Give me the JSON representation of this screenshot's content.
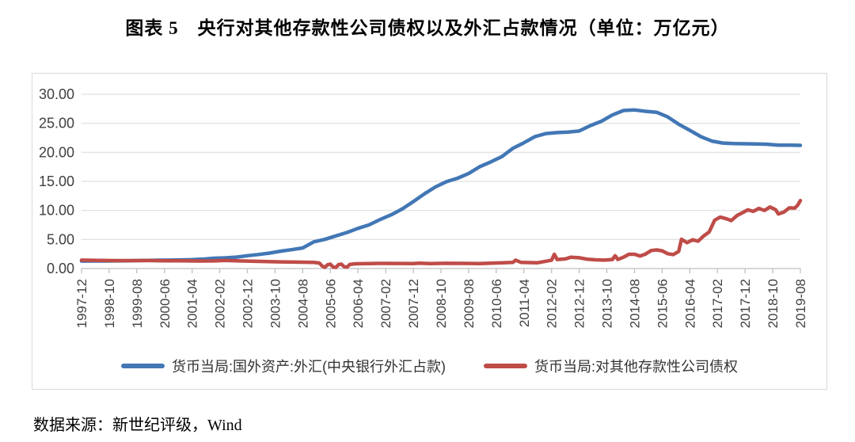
{
  "title": "图表 5　央行对其他存款性公司债权以及外汇占款情况（单位：万亿元）",
  "source": "数据来源：新世纪评级，Wind",
  "chart_data": {
    "type": "line",
    "unit": "万亿元",
    "grid": true,
    "legend_position": "bottom",
    "y_axis": {
      "min": 0,
      "max": 30,
      "ticks": [
        "0.00",
        "5.00",
        "10.00",
        "15.00",
        "20.00",
        "25.00",
        "30.00"
      ]
    },
    "x_axis": {
      "start": "1997-12",
      "end": "2019-08",
      "tick_labels": [
        "1997-12",
        "1998-10",
        "1999-08",
        "2000-06",
        "2001-04",
        "2002-02",
        "2002-12",
        "2003-10",
        "2004-08",
        "2005-06",
        "2006-04",
        "2007-02",
        "2007-12",
        "2008-10",
        "2009-08",
        "2010-06",
        "2011-04",
        "2012-02",
        "2012-12",
        "2013-10",
        "2014-08",
        "2015-06",
        "2016-04",
        "2017-02",
        "2017-12",
        "2018-10",
        "2019-08"
      ]
    },
    "series": [
      {
        "name": "货币当局:国外资产:外汇(中央银行外汇占款)",
        "color": "#4277b5",
        "points": [
          [
            "1997-12",
            1.28
          ],
          [
            "1998-04",
            1.29
          ],
          [
            "1998-08",
            1.3
          ],
          [
            "1998-12",
            1.31
          ],
          [
            "1999-04",
            1.34
          ],
          [
            "1999-08",
            1.37
          ],
          [
            "1999-12",
            1.41
          ],
          [
            "2000-04",
            1.43
          ],
          [
            "2000-08",
            1.45
          ],
          [
            "2000-12",
            1.48
          ],
          [
            "2001-04",
            1.53
          ],
          [
            "2001-08",
            1.62
          ],
          [
            "2001-12",
            1.77
          ],
          [
            "2002-04",
            1.84
          ],
          [
            "2002-08",
            1.96
          ],
          [
            "2002-12",
            2.21
          ],
          [
            "2003-04",
            2.42
          ],
          [
            "2003-08",
            2.66
          ],
          [
            "2003-12",
            2.98
          ],
          [
            "2004-04",
            3.25
          ],
          [
            "2004-08",
            3.55
          ],
          [
            "2004-12",
            4.59
          ],
          [
            "2005-04",
            5.02
          ],
          [
            "2005-08",
            5.62
          ],
          [
            "2005-12",
            6.21
          ],
          [
            "2006-04",
            6.92
          ],
          [
            "2006-08",
            7.52
          ],
          [
            "2006-12",
            8.44
          ],
          [
            "2007-04",
            9.25
          ],
          [
            "2007-08",
            10.25
          ],
          [
            "2007-12",
            11.52
          ],
          [
            "2008-04",
            12.85
          ],
          [
            "2008-08",
            14.05
          ],
          [
            "2008-12",
            14.96
          ],
          [
            "2009-04",
            15.55
          ],
          [
            "2009-08",
            16.35
          ],
          [
            "2009-12",
            17.52
          ],
          [
            "2010-04",
            18.35
          ],
          [
            "2010-08",
            19.25
          ],
          [
            "2010-12",
            20.68
          ],
          [
            "2011-04",
            21.65
          ],
          [
            "2011-08",
            22.7
          ],
          [
            "2011-12",
            23.24
          ],
          [
            "2012-04",
            23.4
          ],
          [
            "2012-08",
            23.5
          ],
          [
            "2012-12",
            23.67
          ],
          [
            "2013-04",
            24.6
          ],
          [
            "2013-08",
            25.35
          ],
          [
            "2013-12",
            26.43
          ],
          [
            "2014-04",
            27.2
          ],
          [
            "2014-08",
            27.3
          ],
          [
            "2014-12",
            27.07
          ],
          [
            "2015-04",
            26.9
          ],
          [
            "2015-08",
            26.1
          ],
          [
            "2015-12",
            24.85
          ],
          [
            "2016-04",
            23.8
          ],
          [
            "2016-08",
            22.7
          ],
          [
            "2016-12",
            21.94
          ],
          [
            "2017-04",
            21.6
          ],
          [
            "2017-08",
            21.5
          ],
          [
            "2017-12",
            21.48
          ],
          [
            "2018-04",
            21.45
          ],
          [
            "2018-08",
            21.4
          ],
          [
            "2018-12",
            21.25
          ],
          [
            "2019-04",
            21.25
          ],
          [
            "2019-08",
            21.2
          ]
        ]
      },
      {
        "name": "货币当局:对其他存款性公司债权",
        "color": "#bf4c48",
        "points": [
          [
            "1997-12",
            1.44
          ],
          [
            "1998-06",
            1.4
          ],
          [
            "1998-12",
            1.37
          ],
          [
            "1999-06",
            1.36
          ],
          [
            "1999-12",
            1.38
          ],
          [
            "2000-06",
            1.34
          ],
          [
            "2000-12",
            1.32
          ],
          [
            "2001-06",
            1.29
          ],
          [
            "2001-12",
            1.31
          ],
          [
            "2002-04",
            1.4
          ],
          [
            "2002-08",
            1.32
          ],
          [
            "2002-12",
            1.28
          ],
          [
            "2003-06",
            1.22
          ],
          [
            "2003-12",
            1.15
          ],
          [
            "2004-06",
            1.1
          ],
          [
            "2004-12",
            1.05
          ],
          [
            "2005-02",
            0.95
          ],
          [
            "2005-03",
            0.45
          ],
          [
            "2005-04",
            0.2
          ],
          [
            "2005-05",
            0.65
          ],
          [
            "2005-06",
            0.75
          ],
          [
            "2005-07",
            0.25
          ],
          [
            "2005-08",
            0.2
          ],
          [
            "2005-09",
            0.68
          ],
          [
            "2005-10",
            0.75
          ],
          [
            "2005-11",
            0.3
          ],
          [
            "2005-12",
            0.25
          ],
          [
            "2006-01",
            0.7
          ],
          [
            "2006-03",
            0.82
          ],
          [
            "2006-08",
            0.86
          ],
          [
            "2006-12",
            0.88
          ],
          [
            "2007-06",
            0.87
          ],
          [
            "2007-12",
            0.85
          ],
          [
            "2008-02",
            0.92
          ],
          [
            "2008-06",
            0.84
          ],
          [
            "2008-12",
            0.9
          ],
          [
            "2009-06",
            0.88
          ],
          [
            "2009-12",
            0.85
          ],
          [
            "2010-06",
            0.95
          ],
          [
            "2010-12",
            1.05
          ],
          [
            "2011-01",
            1.45
          ],
          [
            "2011-03",
            1.05
          ],
          [
            "2011-06",
            1.02
          ],
          [
            "2011-09",
            1.0
          ],
          [
            "2011-12",
            1.25
          ],
          [
            "2012-02",
            1.45
          ],
          [
            "2012-03",
            2.45
          ],
          [
            "2012-04",
            1.55
          ],
          [
            "2012-07",
            1.65
          ],
          [
            "2012-09",
            1.95
          ],
          [
            "2012-12",
            1.85
          ],
          [
            "2013-03",
            1.6
          ],
          [
            "2013-06",
            1.5
          ],
          [
            "2013-09",
            1.45
          ],
          [
            "2013-12",
            1.55
          ],
          [
            "2014-01",
            2.2
          ],
          [
            "2014-02",
            1.55
          ],
          [
            "2014-04",
            1.95
          ],
          [
            "2014-06",
            2.45
          ],
          [
            "2014-08",
            2.45
          ],
          [
            "2014-10",
            2.15
          ],
          [
            "2014-12",
            2.5
          ],
          [
            "2015-02",
            3.1
          ],
          [
            "2015-04",
            3.2
          ],
          [
            "2015-06",
            3.05
          ],
          [
            "2015-08",
            2.55
          ],
          [
            "2015-10",
            2.4
          ],
          [
            "2015-12",
            2.95
          ],
          [
            "2016-01",
            5.05
          ],
          [
            "2016-03",
            4.45
          ],
          [
            "2016-05",
            4.95
          ],
          [
            "2016-07",
            4.7
          ],
          [
            "2016-09",
            5.6
          ],
          [
            "2016-11",
            6.3
          ],
          [
            "2017-01",
            8.3
          ],
          [
            "2017-03",
            8.85
          ],
          [
            "2017-05",
            8.6
          ],
          [
            "2017-07",
            8.25
          ],
          [
            "2017-09",
            9.1
          ],
          [
            "2017-11",
            9.6
          ],
          [
            "2018-01",
            10.1
          ],
          [
            "2018-03",
            9.85
          ],
          [
            "2018-05",
            10.35
          ],
          [
            "2018-07",
            10.0
          ],
          [
            "2018-09",
            10.6
          ],
          [
            "2018-11",
            10.15
          ],
          [
            "2018-12",
            9.4
          ],
          [
            "2019-02",
            9.7
          ],
          [
            "2019-04",
            10.45
          ],
          [
            "2019-06",
            10.4
          ],
          [
            "2019-07",
            10.9
          ],
          [
            "2019-08",
            11.7
          ]
        ]
      }
    ]
  }
}
